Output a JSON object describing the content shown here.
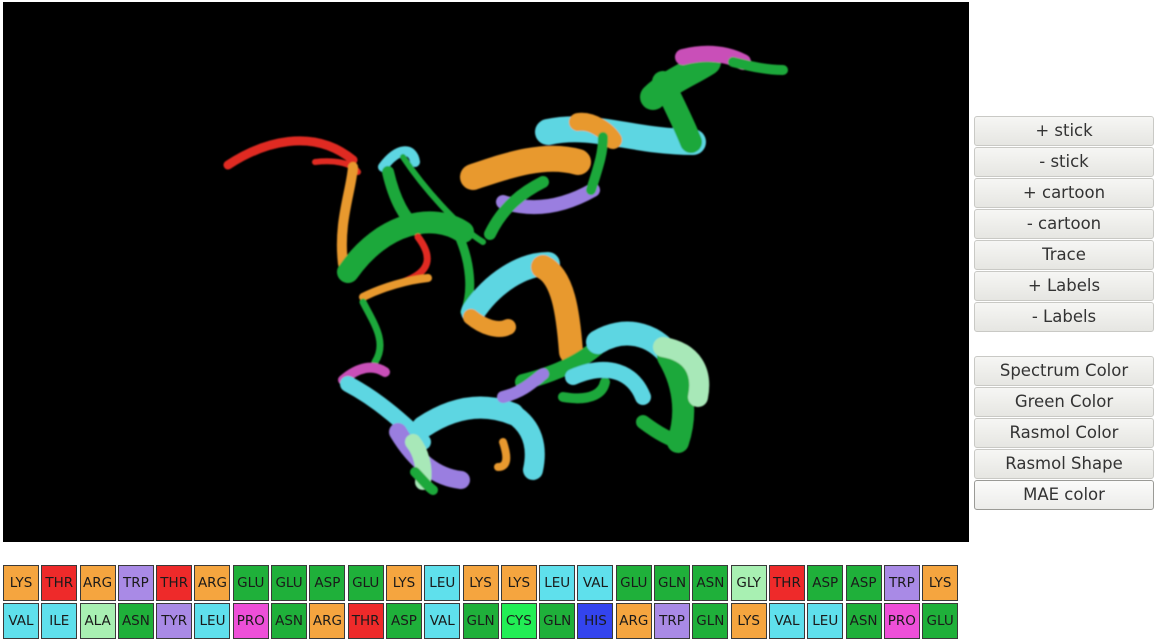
{
  "controls": {
    "representation": [
      {
        "label": "+ stick",
        "name": "add-stick-button"
      },
      {
        "label": "- stick",
        "name": "remove-stick-button"
      },
      {
        "label": "+ cartoon",
        "name": "add-cartoon-button"
      },
      {
        "label": "- cartoon",
        "name": "remove-cartoon-button"
      },
      {
        "label": "Trace",
        "name": "trace-button"
      },
      {
        "label": "+ Labels",
        "name": "add-labels-button"
      },
      {
        "label": "- Labels",
        "name": "remove-labels-button"
      }
    ],
    "coloring": [
      {
        "label": "Spectrum Color",
        "name": "spectrum-color-button"
      },
      {
        "label": "Green Color",
        "name": "green-color-button"
      },
      {
        "label": "Rasmol Color",
        "name": "rasmol-color-button"
      },
      {
        "label": "Rasmol Shape",
        "name": "rasmol-shape-button"
      },
      {
        "label": "MAE color",
        "name": "mae-color-button",
        "active": true
      }
    ]
  },
  "residue_colors": {
    "LYS": "#f5a53f",
    "ARG": "#f5a53f",
    "THR": "#ee2a2a",
    "TRP": "#a98ae6",
    "TYR": "#a98ae6",
    "GLU": "#1fb03a",
    "ASP": "#1fb03a",
    "GLN": "#1fb03a",
    "ASN": "#1fb03a",
    "LEU": "#5fe0ec",
    "VAL": "#5fe0ec",
    "ILE": "#5fe0ec",
    "GLY": "#a8f0b2",
    "ALA": "#a8f0b2",
    "PRO": "#ee4fd8",
    "CYS": "#22ee55",
    "HIS": "#3344ee"
  },
  "sequence_rows": [
    [
      "LYS",
      "THR",
      "ARG",
      "TRP",
      "THR",
      "ARG",
      "GLU",
      "GLU",
      "ASP",
      "GLU",
      "LYS",
      "LEU",
      "LYS",
      "LYS",
      "LEU",
      "VAL",
      "GLU",
      "GLN",
      "ASN",
      "GLY",
      "THR",
      "ASP",
      "ASP",
      "TRP",
      "LYS"
    ],
    [
      "VAL",
      "ILE",
      "ALA",
      "ASN",
      "TYR",
      "LEU",
      "PRO",
      "ASN",
      "ARG",
      "THR",
      "ASP",
      "VAL",
      "GLN",
      "CYS",
      "GLN",
      "HIS",
      "ARG",
      "TRP",
      "GLN",
      "LYS",
      "VAL",
      "LEU",
      "ASN",
      "PRO",
      "GLU"
    ]
  ]
}
